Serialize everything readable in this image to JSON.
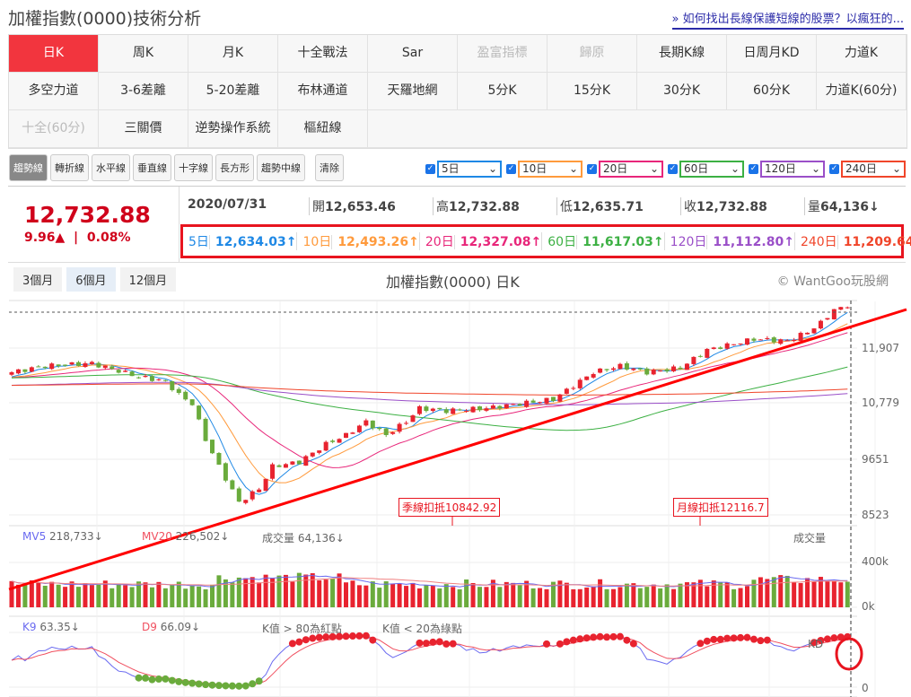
{
  "header": {
    "title": "加權指數(0000)技術分析",
    "link": "» 如何找出長線保護短線的股票？以瘋狂的..."
  },
  "menu": [
    {
      "label": "日K",
      "state": "active"
    },
    {
      "label": "周K"
    },
    {
      "label": "月K"
    },
    {
      "label": "十全戰法"
    },
    {
      "label": "Sar"
    },
    {
      "label": "盈富指標",
      "state": "disabled"
    },
    {
      "label": "歸原",
      "state": "disabled"
    },
    {
      "label": "長期K線"
    },
    {
      "label": "日周月KD"
    },
    {
      "label": "力道K"
    },
    {
      "label": "多空力道"
    },
    {
      "label": "3-6差離"
    },
    {
      "label": "5-20差離"
    },
    {
      "label": "布林通道"
    },
    {
      "label": "天羅地網"
    },
    {
      "label": "5分K"
    },
    {
      "label": "15分K"
    },
    {
      "label": "30分K"
    },
    {
      "label": "60分K"
    },
    {
      "label": "力道K(60分)"
    },
    {
      "label": "十全(60分)",
      "state": "disabled"
    },
    {
      "label": "三關價"
    },
    {
      "label": "逆勢操作系統"
    },
    {
      "label": "樞紐線"
    }
  ],
  "tools": [
    "趨勢線",
    "轉折線",
    "水平線",
    "垂直線",
    "十字線",
    "長方形",
    "趨勢中線"
  ],
  "tools_clear": "清除",
  "ma_selects": [
    {
      "label": "5日",
      "color": "#1e88e5"
    },
    {
      "label": "10日",
      "color": "#ff9a3c"
    },
    {
      "label": "20日",
      "color": "#e8267a"
    },
    {
      "label": "60日",
      "color": "#3cb043"
    },
    {
      "label": "120日",
      "color": "#9a4fc8"
    },
    {
      "label": "240日",
      "color": "#f0452a"
    }
  ],
  "quote": {
    "price": "12,732.88",
    "change": "9.96▲",
    "pct": "0.08%",
    "date": "2020/07/31",
    "fields": [
      {
        "k": "開",
        "v": "12,653.46"
      },
      {
        "k": "高",
        "v": "12,732.88"
      },
      {
        "k": "低",
        "v": "12,635.71"
      },
      {
        "k": "收",
        "v": "12,732.88"
      },
      {
        "k": "量",
        "v": "64,136↓"
      }
    ]
  },
  "ma_values": [
    {
      "k": "5日",
      "v": "12,634.03↑",
      "color": "#1e88e5"
    },
    {
      "k": "10日",
      "v": "12,493.26↑",
      "color": "#ff9a3c"
    },
    {
      "k": "20日",
      "v": "12,327.08↑",
      "color": "#e8267a"
    },
    {
      "k": "60日",
      "v": "11,617.03↑",
      "color": "#3cb043"
    },
    {
      "k": "120日",
      "v": "11,112.80↑",
      "color": "#9a4fc8"
    },
    {
      "k": "240日",
      "v": "11,209.64↑",
      "color": "#f0452a"
    }
  ],
  "periods": [
    {
      "label": "3個月"
    },
    {
      "label": "6個月",
      "active": true
    },
    {
      "label": "12個月"
    }
  ],
  "chart": {
    "title": "加權指數(0000) 日K",
    "copyright": "© WantGoo玩股網",
    "y_ticks": [
      "11,907",
      "10,779",
      "9651",
      "8523"
    ],
    "annotations": [
      "季線扣抵10842.92",
      "月線扣抵12116.7"
    ],
    "volume": {
      "mv5": "MV5",
      "mv5_val": "218,733↓",
      "mv20": "MV20",
      "mv20_val": "226,502↓",
      "vol": "成交量 64,136↓",
      "label": "成交量",
      "ticks": [
        "400k",
        "0k"
      ]
    },
    "kd": {
      "k9": "K9",
      "k9_val": "63.35↓",
      "d9": "D9",
      "d9_val": "66.09↓",
      "note1": "K值 > 80為紅點",
      "note2": "K值 < 20為綠點",
      "label": "KD",
      "tick": "0"
    },
    "close_keypoints": [
      [
        0,
        11416
      ],
      [
        5,
        11543
      ],
      [
        12,
        11598
      ],
      [
        19,
        11325
      ],
      [
        23,
        11234
      ],
      [
        25,
        10961
      ],
      [
        27,
        10779
      ],
      [
        29,
        10052
      ],
      [
        31,
        9506
      ],
      [
        34,
        8778
      ],
      [
        37,
        9051
      ],
      [
        39,
        9506
      ],
      [
        43,
        9597
      ],
      [
        47,
        9960
      ],
      [
        50,
        10142
      ],
      [
        53,
        10415
      ],
      [
        56,
        10142
      ],
      [
        59,
        10415
      ],
      [
        61,
        10688
      ],
      [
        65,
        10634
      ],
      [
        71,
        10688
      ],
      [
        76,
        10779
      ],
      [
        81,
        10870
      ],
      [
        84,
        11143
      ],
      [
        87,
        11416
      ],
      [
        91,
        11543
      ],
      [
        95,
        11416
      ],
      [
        100,
        11507
      ],
      [
        104,
        11870
      ],
      [
        107,
        11962
      ],
      [
        111,
        12089
      ],
      [
        116,
        12052
      ],
      [
        119,
        12234
      ],
      [
        121,
        12416
      ],
      [
        123,
        12689
      ],
      [
        125,
        12733
      ]
    ],
    "colors": {
      "up": "#e8232f",
      "down": "#6aab3c",
      "trend": "#ff0000"
    }
  }
}
